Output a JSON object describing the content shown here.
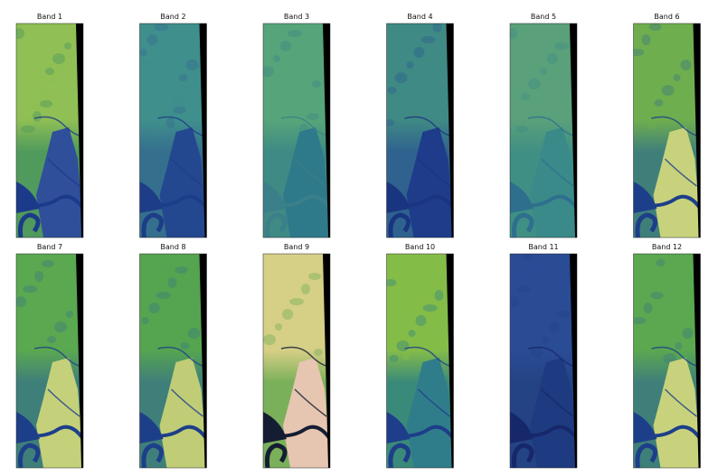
{
  "panels": [
    {
      "title": "Band 1"
    },
    {
      "title": "Band 2"
    },
    {
      "title": "Band 3"
    },
    {
      "title": "Band 4"
    },
    {
      "title": "Band 5"
    },
    {
      "title": "Band 6"
    },
    {
      "title": "Band 7"
    },
    {
      "title": "Band 8"
    },
    {
      "title": "Band 9"
    },
    {
      "title": "Band 10"
    },
    {
      "title": "Band 11"
    },
    {
      "title": "Band 12"
    }
  ]
}
